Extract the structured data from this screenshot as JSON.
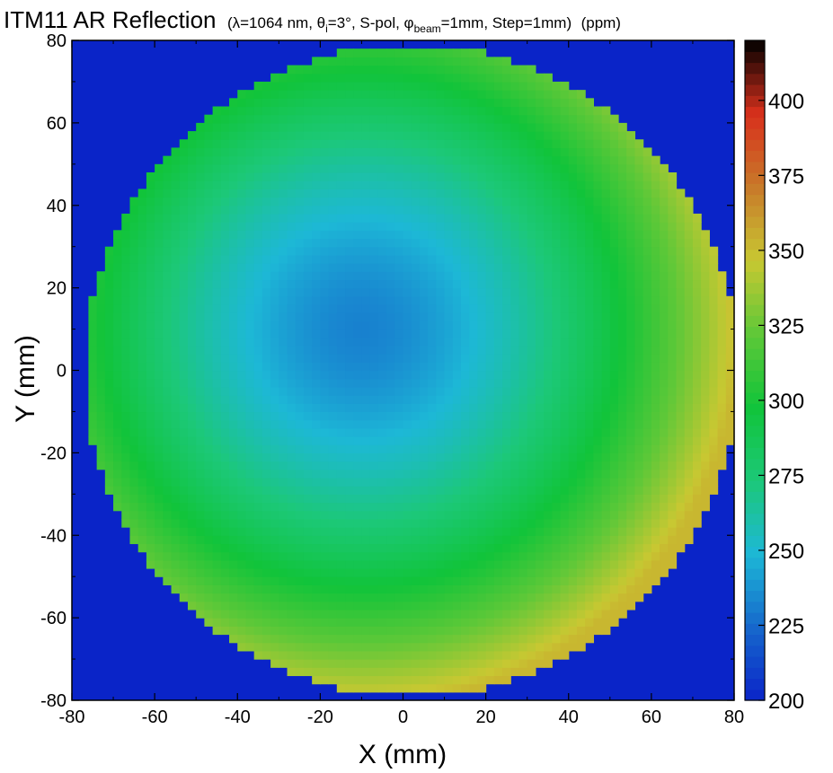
{
  "chart_data": {
    "type": "heatmap",
    "title": {
      "main": "ITM11 AR Reflection",
      "p1": "(λ=1064 nm, θ",
      "p1_sub": "i",
      "p2": "=3°, S-pol, φ",
      "p2_sub": "beam",
      "p3": "=1mm, Step=1mm)",
      "unit": "(ppm)"
    },
    "xlabel": "X (mm)",
    "ylabel": "Y (mm)",
    "xlim": [
      -80,
      80
    ],
    "ylim": [
      -80,
      80
    ],
    "xticks": [
      -80,
      -60,
      -40,
      -20,
      0,
      20,
      40,
      60,
      80
    ],
    "yticks": [
      -80,
      -60,
      -40,
      -20,
      0,
      20,
      40,
      60,
      80
    ],
    "colorbar": {
      "range": [
        200,
        420
      ],
      "ticks": [
        200,
        225,
        250,
        275,
        300,
        325,
        350,
        375,
        400
      ],
      "colors": [
        "#0a24c8",
        "#1668cc",
        "#1db8d6",
        "#1cc878",
        "#11c43a",
        "#5ec838",
        "#c8c832",
        "#c87a2a",
        "#d8301c",
        "#000000"
      ]
    },
    "background_value": 200,
    "disk": {
      "center": [
        2,
        0
      ],
      "radius": 79
    },
    "field_model": {
      "center": [
        -10,
        10
      ],
      "center_value": 232,
      "edge_value": 352,
      "secondary_blob": {
        "center": [
          -2,
          -8
        ],
        "value": 255,
        "radius": 18
      }
    },
    "grid": false,
    "colorbar_position": "right"
  }
}
